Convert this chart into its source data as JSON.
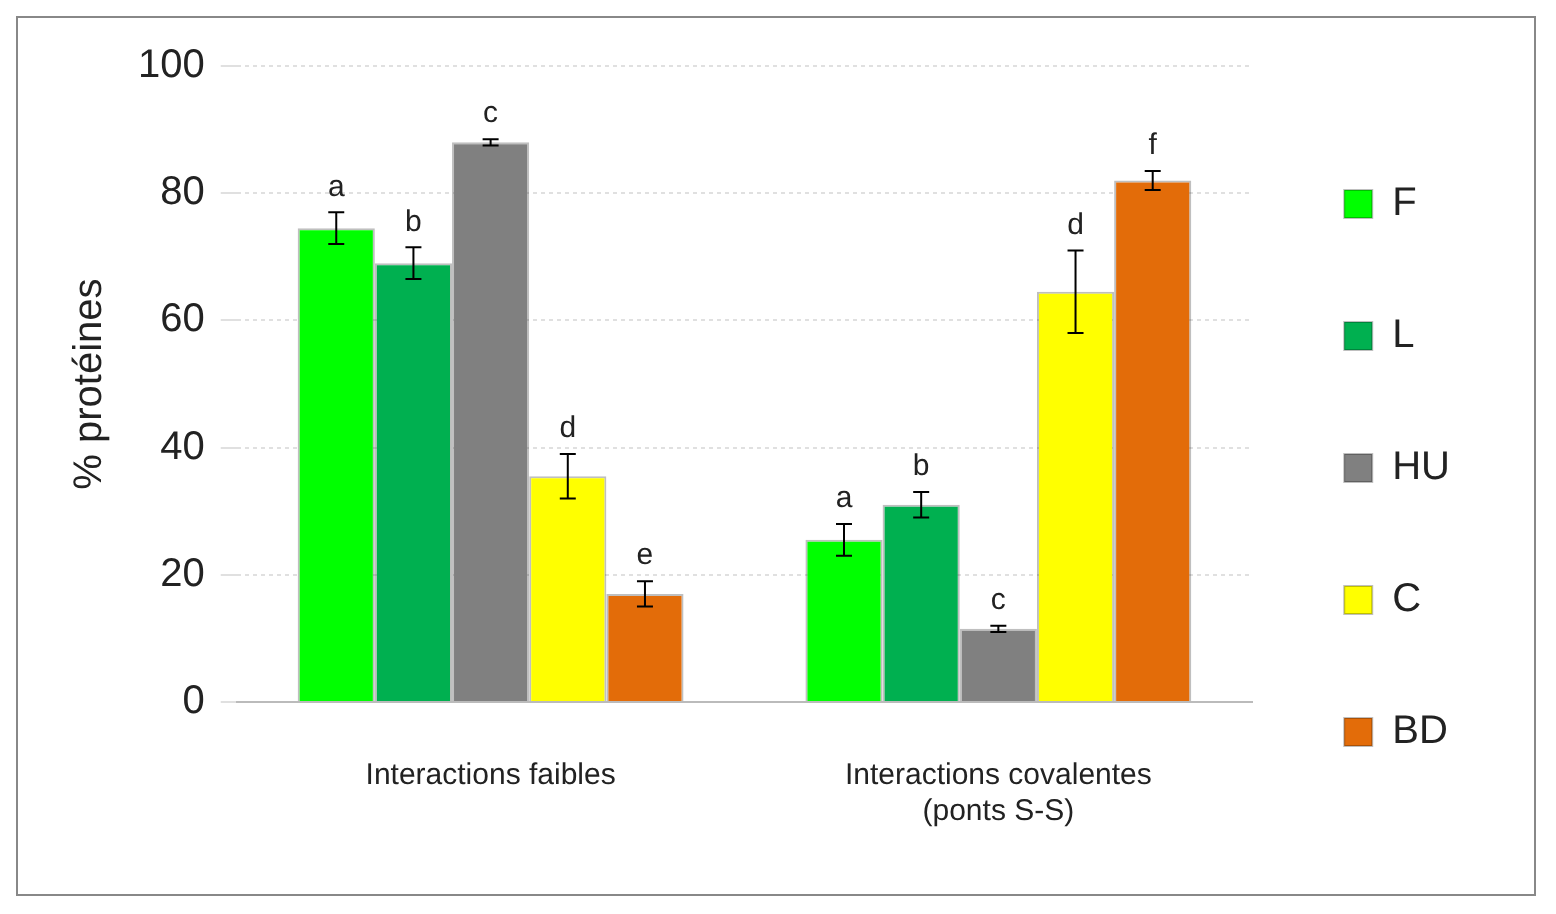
{
  "chart_data": {
    "type": "bar",
    "ylabel": "% protéines",
    "categories": [
      "Interactions faibles",
      "Interactions covalentes\n(ponts S-S)"
    ],
    "series": [
      {
        "name": "F",
        "color": "#00ff00",
        "values": [
          74.5,
          25.5
        ],
        "errors": [
          2.5,
          2.5
        ],
        "value_labels": [
          "a",
          "a"
        ]
      },
      {
        "name": "L",
        "color": "#00b050",
        "values": [
          69,
          31
        ],
        "errors": [
          2.5,
          2
        ],
        "value_labels": [
          "b",
          "b"
        ]
      },
      {
        "name": "HU",
        "color": "#808080",
        "values": [
          88,
          11.5
        ],
        "errors": [
          0.5,
          0.5
        ],
        "value_labels": [
          "c",
          "c"
        ]
      },
      {
        "name": "C",
        "color": "#ffff00",
        "values": [
          35.5,
          64.5
        ],
        "errors": [
          3.5,
          6.5
        ],
        "value_labels": [
          "d",
          "d"
        ]
      },
      {
        "name": "BD",
        "color": "#e36c09",
        "values": [
          17,
          82
        ],
        "errors": [
          2,
          1.5
        ],
        "value_labels": [
          "e",
          "f"
        ]
      }
    ],
    "ylim": [
      0,
      100
    ],
    "yticks": [
      0,
      20,
      40,
      60,
      80,
      100
    ],
    "grid": "y",
    "legend": "right"
  }
}
